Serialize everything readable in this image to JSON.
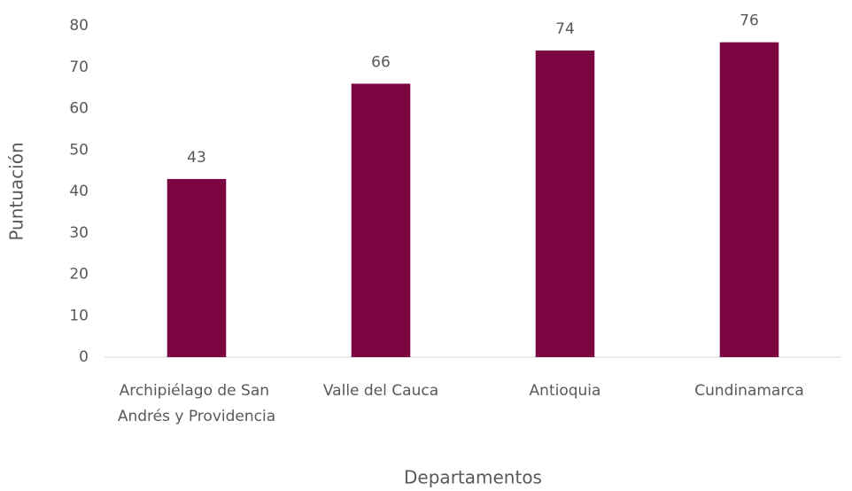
{
  "chart_data": {
    "type": "bar",
    "categories": [
      "Archipiélago de San Andrés y Providencia",
      "Valle del Cauca",
      "Antioquia",
      "Cundinamarca"
    ],
    "values": [
      43,
      66,
      74,
      76
    ],
    "color": "#7b0641",
    "ylim": [
      0,
      80
    ],
    "yticks": [
      0,
      10,
      20,
      30,
      40,
      50,
      60,
      70,
      80
    ],
    "grid": false,
    "x_label": "Departamentos",
    "y_label": "Puntuación"
  }
}
